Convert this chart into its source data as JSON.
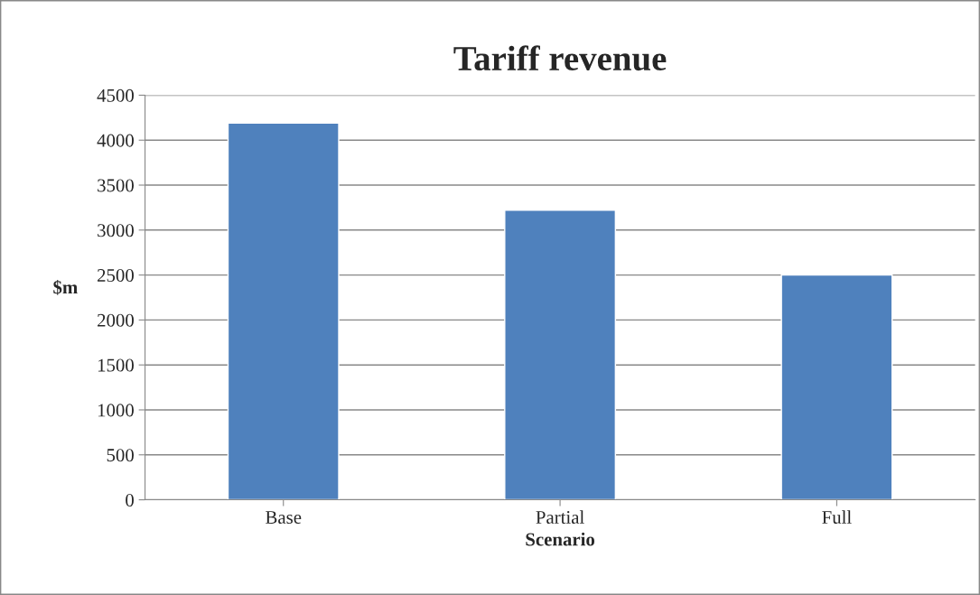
{
  "chart_data": {
    "type": "bar",
    "title": "Tariff revenue",
    "xlabel": "Scenario",
    "ylabel": "$m",
    "categories": [
      "Base",
      "Partial",
      "Full"
    ],
    "values": [
      4190,
      3220,
      2500
    ],
    "color": "#4f81bd",
    "ylim": [
      0,
      4500
    ],
    "yticks": [
      0,
      500,
      1000,
      1500,
      2000,
      2500,
      3000,
      3500,
      4000,
      4500
    ],
    "grid": "y",
    "legend": false
  }
}
